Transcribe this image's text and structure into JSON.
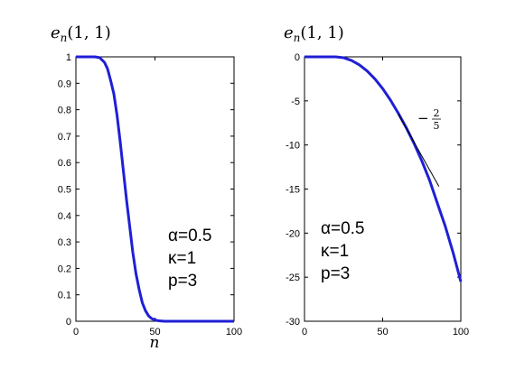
{
  "chart_data": [
    {
      "type": "line",
      "title_base": "e",
      "title_sub": "n",
      "title_args": "(1, 1)",
      "xlabel": "n",
      "xlim": [
        0,
        100
      ],
      "ylim": [
        0,
        1
      ],
      "xticks": [
        0,
        50,
        100
      ],
      "xtick_labels": [
        "0",
        "50",
        "100"
      ],
      "yticks": [
        0,
        0.1,
        0.2,
        0.3,
        0.4,
        0.5,
        0.6,
        0.7,
        0.8,
        0.9,
        1
      ],
      "ytick_labels": [
        "0",
        "0.1",
        "0.2",
        "0.3",
        "0.4",
        "0.5",
        "0.6",
        "0.7",
        "0.8",
        "0.9",
        "1"
      ],
      "grid": false,
      "series": [
        {
          "color": "#1f1fd6",
          "x": [
            0,
            12,
            15,
            18,
            20,
            22,
            24,
            26,
            28,
            30,
            32,
            34,
            36,
            38,
            40,
            42,
            44,
            46,
            48,
            50,
            52,
            54,
            56,
            58,
            60,
            70,
            80,
            90,
            100
          ],
          "y": [
            1,
            1,
            0.997,
            0.98,
            0.955,
            0.91,
            0.86,
            0.78,
            0.68,
            0.57,
            0.46,
            0.36,
            0.26,
            0.18,
            0.12,
            0.07,
            0.04,
            0.02,
            0.01,
            0.005,
            0.002,
            0.001,
            0,
            0,
            0,
            0,
            0,
            0,
            0
          ]
        }
      ],
      "annotations": [
        "α=0.5",
        "κ=1",
        "p=3"
      ]
    },
    {
      "type": "line",
      "title_base": "e",
      "title_sub": "n",
      "title_args": "(1, 1)",
      "xlabel": "",
      "xlim": [
        0,
        100
      ],
      "ylim": [
        -30,
        0
      ],
      "xticks": [
        0,
        50,
        100
      ],
      "xtick_labels": [
        "0",
        "50",
        "100"
      ],
      "yticks": [
        0,
        -5,
        -10,
        -15,
        -20,
        -25,
        -30
      ],
      "ytick_labels": [
        "0",
        "-5",
        "-10",
        "-15",
        "-20",
        "-25",
        "-30"
      ],
      "grid": false,
      "series": [
        {
          "color": "#1f1fd6",
          "x": [
            0,
            10,
            20,
            25,
            30,
            35,
            40,
            45,
            50,
            55,
            60,
            65,
            70,
            75,
            80,
            85,
            90,
            95,
            100
          ],
          "y": [
            0,
            0,
            0,
            -0.1,
            -0.4,
            -0.9,
            -1.6,
            -2.5,
            -3.6,
            -4.9,
            -6.4,
            -8.0,
            -9.8,
            -11.8,
            -14.0,
            -16.6,
            -19.2,
            -22.2,
            -25.5
          ]
        }
      ],
      "slope_line": {
        "x": [
          60,
          86
        ],
        "y": [
          -6.5,
          -14.7
        ]
      },
      "slope_label": {
        "sign": "−",
        "num": "2",
        "den": "5"
      },
      "annotations": [
        "α=0.5",
        "κ=1",
        "p=3"
      ]
    }
  ]
}
